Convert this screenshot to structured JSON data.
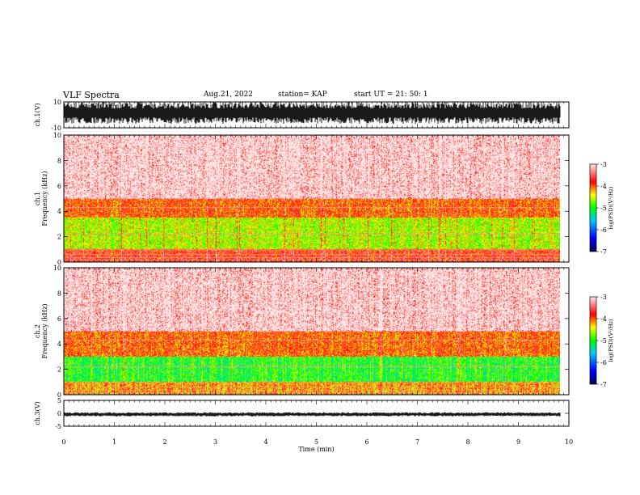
{
  "header": {
    "title": "VLF Spectra",
    "date": "Aug.21, 2022",
    "station": "station= KAP",
    "start": "start  UT =   21: 50: 1"
  },
  "colors": {
    "spectrogram_low": "#ff0000",
    "spectrogram_mid": "#ffff00",
    "spectrogram_high": "#00ff00",
    "waveform": "#000000"
  },
  "chart_data": [
    {
      "type": "line",
      "panel": "ch1-waveform",
      "ylabel": "ch.1(V)",
      "ylim": [
        -10,
        10
      ],
      "yticks": [
        "10",
        "-10"
      ],
      "xlim": [
        0,
        10
      ],
      "description_values": {
        "envelope_min": -7,
        "envelope_max": 10
      }
    },
    {
      "type": "heatmap",
      "panel": "ch1-spectrogram",
      "ylabel": "ch.1\nFrequency  (kHz)",
      "ylim": [
        0,
        10
      ],
      "yticks": [
        "0",
        "2",
        "4",
        "6",
        "8",
        "10"
      ],
      "xlim": [
        0,
        9.83
      ],
      "band_levels": [
        {
          "f": [
            0,
            1
          ],
          "level": -3.8
        },
        {
          "f": [
            1,
            3.5
          ],
          "level": -4.6
        },
        {
          "f": [
            3.5,
            5
          ],
          "level": -4.0
        },
        {
          "f": [
            5,
            10
          ],
          "level": -3.3
        }
      ],
      "colorbar": {
        "label": "log(PSD)(V²/Hz)",
        "range": [
          -7,
          -3
        ],
        "ticks": [
          "-3",
          "-4",
          "-5",
          "-6",
          "-7"
        ]
      }
    },
    {
      "type": "heatmap",
      "panel": "ch2-spectrogram",
      "ylabel": "ch.2\nFrequency  (kHz)",
      "ylim": [
        0,
        10
      ],
      "yticks": [
        "0",
        "2",
        "4",
        "6",
        "8",
        "10"
      ],
      "xlim": [
        0,
        9.83
      ],
      "band_levels": [
        {
          "f": [
            0,
            1
          ],
          "level": -4.2
        },
        {
          "f": [
            1,
            3
          ],
          "level": -5.0
        },
        {
          "f": [
            3,
            5
          ],
          "level": -4.0
        },
        {
          "f": [
            5,
            10
          ],
          "level": -3.3
        }
      ],
      "colorbar": {
        "label": "log(PSD)(V²/Hz)",
        "range": [
          -7,
          -3
        ],
        "ticks": [
          "-3",
          "-4",
          "-5",
          "-6",
          "-7"
        ]
      }
    },
    {
      "type": "line",
      "panel": "ch3-waveform",
      "ylabel": "ch.3(V)",
      "ylim": [
        -5,
        5
      ],
      "yticks": [
        "5",
        "0",
        "-5"
      ],
      "xlim": [
        0,
        10
      ],
      "description_values": {
        "envelope_min": -1.2,
        "envelope_max": 0.4
      }
    }
  ],
  "xaxis": {
    "label": "Time  (min)",
    "ticks": [
      "0",
      "1",
      "2",
      "3",
      "4",
      "5",
      "6",
      "7",
      "8",
      "9",
      "10"
    ]
  }
}
